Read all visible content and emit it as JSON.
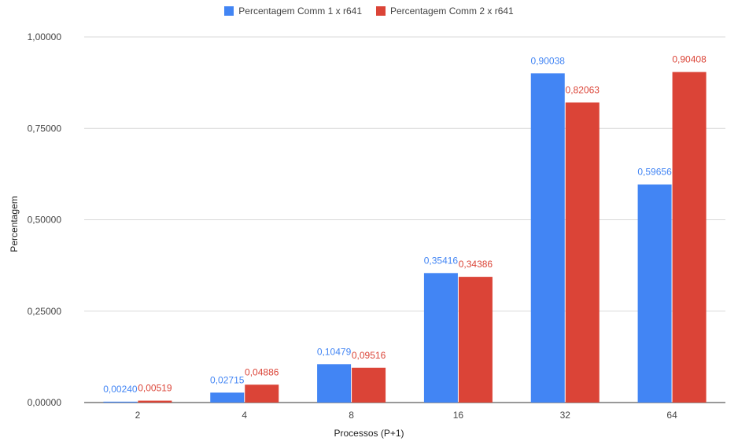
{
  "chart_data": {
    "type": "bar",
    "categories": [
      "2",
      "4",
      "8",
      "16",
      "32",
      "64"
    ],
    "series": [
      {
        "name": "Percentagem Comm 1 x r641",
        "color": "#4285f4",
        "values": [
          0.0024,
          0.02715,
          0.10479,
          0.35416,
          0.90038,
          0.59656
        ],
        "labels": [
          "0,00240",
          "0,02715",
          "0,10479",
          "0,35416",
          "0,90038",
          "0,59656"
        ]
      },
      {
        "name": "Percentagem Comm 2 x r641",
        "color": "#db4437",
        "values": [
          0.00519,
          0.04886,
          0.09516,
          0.34386,
          0.82063,
          0.90408
        ],
        "labels": [
          "0,00519",
          "0,04886",
          "0,09516",
          "0,34386",
          "0,82063",
          "0,90408"
        ]
      }
    ],
    "yticks": [
      0,
      0.25,
      0.5,
      0.75,
      1.0
    ],
    "ytick_labels": [
      "0,00000",
      "0,25000",
      "0,50000",
      "0,75000",
      "1,00000"
    ],
    "ylim": [
      0,
      1.0
    ],
    "xlabel": "Processos (P+1)",
    "ylabel": "Percentagem",
    "legend_position": "top-center",
    "grid": true
  }
}
